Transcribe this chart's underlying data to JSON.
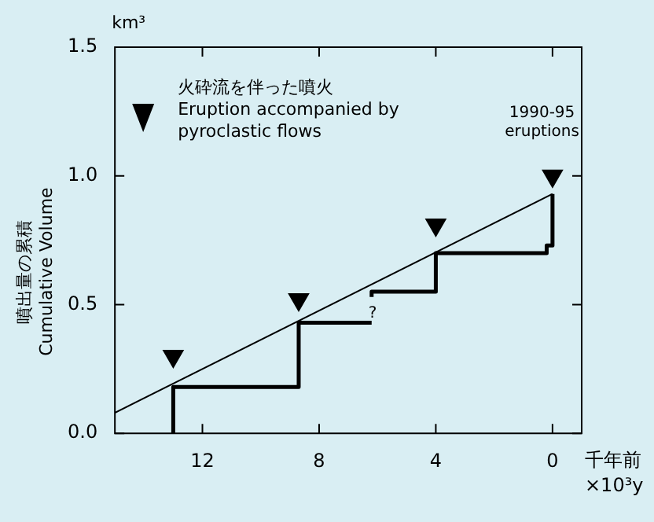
{
  "chart_data": {
    "type": "line",
    "ylabel": "噴出量の累積\nCumulative Volume",
    "xlabel": "千年前\n×10³y",
    "xlim": [
      15,
      -1
    ],
    "xticks": [
      12,
      8,
      4,
      0
    ],
    "ylim": [
      0,
      1.5
    ],
    "yticks": [
      {
        "value": 0,
        "label": "0.0"
      },
      {
        "value": 0.5,
        "label": "0.5"
      },
      {
        "value": 1,
        "label": "1.0"
      },
      {
        "value": 1.5,
        "label": "1.5"
      }
    ],
    "grid": false,
    "legend": "top left",
    "series": [
      {
        "color": "#000000",
        "marker": "none",
        "x": [
          13,
          13,
          8.7,
          8.7,
          6.2
        ],
        "values": [
          0,
          0.18,
          0.18,
          0.43,
          0.43
        ]
      },
      {
        "color": "#000000",
        "marker": "none",
        "x": [
          6.2,
          6.2,
          4,
          4,
          0.2,
          0.2,
          0,
          0
        ],
        "values": [
          0.53,
          0.55,
          0.55,
          0.7,
          0.7,
          0.73,
          0.73,
          0.93
        ]
      },
      {
        "color": "#000000",
        "marker": "none",
        "x": [
          15,
          0
        ],
        "values": [
          0.08,
          0.93
        ]
      },
      {
        "type": "scatter",
        "name": "火砕流を伴った噴火\nEruption accompanied by\npyroclastic flows",
        "color": "#000000",
        "marker": "triangle",
        "x": [
          13,
          8.7,
          4,
          0
        ],
        "values": [
          0.3,
          0.52,
          0.81,
          1.0
        ]
      }
    ],
    "annotations": [
      "km³",
      "1990-95\neruptions",
      "?"
    ]
  }
}
